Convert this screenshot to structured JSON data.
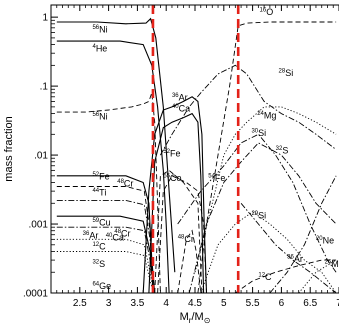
{
  "chart_data": {
    "type": "line",
    "xlabel": "M",
    "xlabel_sub": "r",
    "xlabel_unit": "/M",
    "xlabel_unit_sub": "⊙",
    "ylabel": "mass fraction",
    "xlim": [
      2,
      7
    ],
    "ylim": [
      0.0001,
      1.5
    ],
    "yscale": "log",
    "x_ticks": [
      {
        "v": 2,
        "label": ""
      },
      {
        "v": 2.5,
        "label": "2.5"
      },
      {
        "v": 3,
        "label": "3"
      },
      {
        "v": 3.5,
        "label": "3.5"
      },
      {
        "v": 4,
        "label": "4"
      },
      {
        "v": 4.5,
        "label": "4.5"
      },
      {
        "v": 5,
        "label": "5"
      },
      {
        "v": 5.5,
        "label": "5.5"
      },
      {
        "v": 6,
        "label": "6"
      },
      {
        "v": 6.5,
        "label": "6.5"
      },
      {
        "v": 7,
        "label": "7"
      }
    ],
    "y_ticks": [
      {
        "v": 1,
        "label": "1"
      },
      {
        "v": 0.1,
        "label": ".1"
      },
      {
        "v": 0.01,
        "label": ".01"
      },
      {
        "v": 0.001,
        "label": ".001"
      },
      {
        "v": 0.0001,
        "label": ".0001"
      }
    ],
    "grid": false,
    "legend": "none",
    "vlines": [
      {
        "x": 3.77,
        "color": "#e32219"
      },
      {
        "x": 5.25,
        "color": "#e32219"
      }
    ],
    "series": [
      {
        "id": "ni56",
        "style": "solid",
        "points": [
          [
            2.1,
            0.85
          ],
          [
            2.8,
            0.85
          ],
          [
            3.3,
            0.8
          ],
          [
            3.65,
            0.82
          ],
          [
            3.73,
            0.95
          ],
          [
            3.82,
            0.5
          ],
          [
            3.95,
            0.05
          ],
          [
            4.05,
            0.003
          ],
          [
            4.15,
            0.0002
          ]
        ]
      },
      {
        "id": "he4",
        "style": "solid",
        "points": [
          [
            2.1,
            0.45
          ],
          [
            3.2,
            0.45
          ],
          [
            3.6,
            0.4
          ],
          [
            3.75,
            0.2
          ],
          [
            3.85,
            0.05
          ],
          [
            3.95,
            0.006
          ],
          [
            4.0,
            0.001
          ],
          [
            4.05,
            0.0001
          ]
        ]
      },
      {
        "id": "ni56b",
        "style": "dashed",
        "points": [
          [
            2.1,
            0.042
          ],
          [
            2.6,
            0.042
          ],
          [
            3.0,
            0.045
          ],
          [
            3.4,
            0.05
          ],
          [
            3.6,
            0.055
          ],
          [
            3.7,
            0.06
          ],
          [
            3.75,
            0.08
          ],
          [
            3.8,
            0.03
          ],
          [
            3.85,
            0.002
          ],
          [
            3.9,
            0.0001
          ]
        ]
      },
      {
        "id": "ar36",
        "style": "solid",
        "points": [
          [
            3.6,
            0.0001
          ],
          [
            3.7,
            0.003
          ],
          [
            3.8,
            0.02
          ],
          [
            3.95,
            0.045
          ],
          [
            4.1,
            0.05
          ],
          [
            4.3,
            0.06
          ],
          [
            4.45,
            0.07
          ],
          [
            4.55,
            0.06
          ],
          [
            4.62,
            0.02
          ],
          [
            4.66,
            0.001
          ],
          [
            4.7,
            0.0001
          ]
        ]
      },
      {
        "id": "ca40",
        "style": "solid",
        "points": [
          [
            3.7,
            0.0001
          ],
          [
            3.8,
            0.008
          ],
          [
            3.95,
            0.025
          ],
          [
            4.1,
            0.03
          ],
          [
            4.3,
            0.035
          ],
          [
            4.45,
            0.04
          ],
          [
            4.55,
            0.03
          ],
          [
            4.6,
            0.005
          ],
          [
            4.65,
            0.0001
          ]
        ]
      },
      {
        "id": "fe52",
        "style": "solid",
        "points": [
          [
            2.1,
            0.005
          ],
          [
            3.3,
            0.005
          ],
          [
            3.6,
            0.004
          ],
          [
            3.7,
            0.002
          ],
          [
            3.75,
            0.0003
          ],
          [
            3.8,
            0.0001
          ]
        ]
      },
      {
        "id": "fe54",
        "style": "dashed",
        "points": [
          [
            3.85,
            0.0001
          ],
          [
            3.95,
            0.003
          ],
          [
            4.1,
            0.005
          ],
          [
            4.35,
            0.004
          ],
          [
            4.55,
            0.003
          ],
          [
            4.65,
            0.001
          ],
          [
            4.7,
            0.0001
          ]
        ]
      },
      {
        "id": "co55",
        "style": "dashed",
        "points": [
          [
            3.8,
            0.0001
          ],
          [
            3.9,
            0.005
          ],
          [
            4.05,
            0.006
          ],
          [
            4.3,
            0.004
          ],
          [
            4.55,
            0.002
          ],
          [
            4.62,
            0.0001
          ]
        ]
      },
      {
        "id": "si28",
        "style": "dashdot",
        "points": [
          [
            3.9,
            0.01
          ],
          [
            4.1,
            0.02
          ],
          [
            4.4,
            0.05
          ],
          [
            4.6,
            0.08
          ],
          [
            4.9,
            0.15
          ],
          [
            5.2,
            0.2
          ],
          [
            5.4,
            0.15
          ],
          [
            5.7,
            0.06
          ],
          [
            6.0,
            0.04
          ],
          [
            6.3,
            0.03
          ],
          [
            6.6,
            0.02
          ],
          [
            6.95,
            0.012
          ]
        ]
      },
      {
        "id": "o16",
        "style": "dashed",
        "points": [
          [
            4.55,
            0.0001
          ],
          [
            4.7,
            0.001
          ],
          [
            4.9,
            0.01
          ],
          [
            5.1,
            0.1
          ],
          [
            5.25,
            0.75
          ],
          [
            5.4,
            0.82
          ],
          [
            5.8,
            0.85
          ],
          [
            6.3,
            0.85
          ],
          [
            6.95,
            0.85
          ]
        ]
      },
      {
        "id": "mg24",
        "style": "dotted",
        "points": [
          [
            4.5,
            0.0002
          ],
          [
            4.8,
            0.002
          ],
          [
            5.0,
            0.01
          ],
          [
            5.2,
            0.02
          ],
          [
            5.4,
            0.03
          ],
          [
            5.7,
            0.05
          ],
          [
            6.0,
            0.05
          ],
          [
            6.3,
            0.04
          ],
          [
            6.6,
            0.03
          ],
          [
            6.95,
            0.02
          ]
        ]
      },
      {
        "id": "si30",
        "style": "dashdot",
        "points": [
          [
            4.4,
            0.0001
          ],
          [
            4.7,
            0.001
          ],
          [
            5.0,
            0.004
          ],
          [
            5.3,
            0.008
          ],
          [
            5.6,
            0.015
          ],
          [
            6.0,
            0.01
          ],
          [
            6.3,
            0.005
          ],
          [
            6.6,
            0.002
          ],
          [
            6.95,
            0.001
          ]
        ]
      },
      {
        "id": "s32",
        "style": "dashdot",
        "points": [
          [
            4.2,
            0.001
          ],
          [
            4.6,
            0.003
          ],
          [
            5.0,
            0.007
          ],
          [
            5.3,
            0.015
          ],
          [
            5.6,
            0.02
          ],
          [
            5.9,
            0.01
          ],
          [
            6.2,
            0.004
          ],
          [
            6.5,
            0.001
          ],
          [
            6.8,
            0.0003
          ],
          [
            6.95,
            0.0002
          ]
        ]
      },
      {
        "id": "si29",
        "style": "dotted",
        "points": [
          [
            4.6,
            0.0001
          ],
          [
            4.9,
            0.0005
          ],
          [
            5.2,
            0.001
          ],
          [
            5.5,
            0.0015
          ],
          [
            5.8,
            0.001
          ],
          [
            6.1,
            0.0006
          ],
          [
            6.4,
            0.0003
          ],
          [
            6.7,
            0.0002
          ],
          [
            6.95,
            0.0001
          ]
        ]
      },
      {
        "id": "ne20",
        "style": "dashdot",
        "points": [
          [
            5.8,
            0.0001
          ],
          [
            6.1,
            0.0002
          ],
          [
            6.4,
            0.0005
          ],
          [
            6.7,
            0.002
          ],
          [
            6.95,
            0.005
          ]
        ]
      },
      {
        "id": "c12",
        "style": "dashed",
        "points": [
          [
            5.2,
            0.0001
          ],
          [
            5.5,
            0.00015
          ],
          [
            5.9,
            0.0002
          ],
          [
            6.3,
            0.00025
          ],
          [
            6.7,
            0.0003
          ],
          [
            6.95,
            0.0003
          ]
        ]
      },
      {
        "id": "ar36b",
        "style": "dashdot",
        "points": [
          [
            5.3,
            0.002
          ],
          [
            5.6,
            0.001
          ],
          [
            5.9,
            0.0005
          ],
          [
            6.2,
            0.0003
          ],
          [
            6.5,
            0.0002
          ],
          [
            6.95,
            0.0001
          ]
        ]
      },
      {
        "id": "mg26",
        "style": "dotted",
        "points": [
          [
            6.3,
            0.0001
          ],
          [
            6.6,
            0.0002
          ],
          [
            6.95,
            0.0003
          ]
        ]
      },
      {
        "id": "cu59",
        "style": "solid",
        "points": [
          [
            2.1,
            0.0013
          ],
          [
            3.2,
            0.0013
          ],
          [
            3.6,
            0.0011
          ],
          [
            3.72,
            0.0004
          ],
          [
            3.78,
            0.0001
          ]
        ]
      },
      {
        "id": "cr48",
        "style": "dashed",
        "points": [
          [
            2.1,
            0.0035
          ],
          [
            3.3,
            0.0035
          ],
          [
            3.62,
            0.003
          ],
          [
            3.72,
            0.0008
          ],
          [
            3.78,
            0.0001
          ]
        ]
      },
      {
        "id": "ti44",
        "style": "dashdot",
        "points": [
          [
            2.1,
            0.0022
          ],
          [
            3.3,
            0.0022
          ],
          [
            3.62,
            0.0019
          ],
          [
            3.72,
            0.0006
          ],
          [
            3.78,
            0.0001
          ]
        ]
      },
      {
        "id": "ca40b",
        "style": "dashdot",
        "points": [
          [
            2.1,
            0.0009
          ],
          [
            3.3,
            0.0009
          ],
          [
            3.62,
            0.0008
          ],
          [
            3.72,
            0.0003
          ],
          [
            3.78,
            0.0001
          ]
        ]
      },
      {
        "id": "ar36c",
        "style": "dotted",
        "points": [
          [
            2.1,
            0.0006
          ],
          [
            3.3,
            0.0006
          ],
          [
            3.62,
            0.0005
          ],
          [
            3.72,
            0.0002
          ],
          [
            3.78,
            0.0001
          ]
        ]
      },
      {
        "id": "s32b",
        "style": "dotted",
        "points": [
          [
            2.1,
            0.0004
          ],
          [
            3.3,
            0.0004
          ],
          [
            3.62,
            0.00035
          ],
          [
            3.72,
            0.00015
          ],
          [
            3.78,
            0.0001
          ]
        ]
      },
      {
        "id": "cr48b",
        "style": "dashed",
        "points": [
          [
            4.2,
            0.0001
          ],
          [
            4.35,
            0.0006
          ],
          [
            4.45,
            0.0008
          ],
          [
            4.52,
            0.0004
          ],
          [
            4.6,
            0.0001
          ]
        ]
      }
    ],
    "annotations": [
      {
        "base": "Ni",
        "sup": "56",
        "x": 2.72,
        "y": 0.6
      },
      {
        "base": "He",
        "sup": "4",
        "x": 2.72,
        "y": 0.32
      },
      {
        "base": "Ni",
        "sup": "56",
        "x": 2.72,
        "y": 0.033
      },
      {
        "base": "Ar",
        "sup": "36",
        "x": 4.1,
        "y": 0.062
      },
      {
        "base": "Ca",
        "sup": "40",
        "x": 4.1,
        "y": 0.043
      },
      {
        "base": "Fe",
        "sup": "52",
        "x": 3.95,
        "y": 0.0095
      },
      {
        "base": "Co",
        "sup": "55",
        "x": 3.95,
        "y": 0.0042
      },
      {
        "base": "Fe",
        "sup": "54",
        "x": 4.73,
        "y": 0.0042
      },
      {
        "base": "O",
        "sup": "16",
        "x": 5.62,
        "y": 1.08
      },
      {
        "base": "Si",
        "sup": "28",
        "x": 5.95,
        "y": 0.14
      },
      {
        "base": "Mg",
        "sup": "24",
        "x": 5.58,
        "y": 0.034
      },
      {
        "base": "Si",
        "sup": "30",
        "x": 5.48,
        "y": 0.019
      },
      {
        "base": "S",
        "sup": "32",
        "x": 5.9,
        "y": 0.0105
      },
      {
        "base": "Si",
        "sup": "29",
        "x": 5.48,
        "y": 0.0012
      },
      {
        "base": "Fe",
        "sup": "52",
        "x": 2.72,
        "y": 0.0044
      },
      {
        "base": "Cr",
        "sup": "48",
        "x": 3.15,
        "y": 0.0035
      },
      {
        "base": "Ti",
        "sup": "44",
        "x": 2.72,
        "y": 0.0026
      },
      {
        "base": "Cu",
        "sup": "59",
        "x": 2.72,
        "y": 0.00095
      },
      {
        "base": "Cr",
        "sup": "48",
        "x": 3.1,
        "y": 0.00066
      },
      {
        "base": "Ar",
        "sup": "36",
        "x": 2.55,
        "y": 0.00062
      },
      {
        "base": "Ca",
        "sup": "40",
        "x": 2.95,
        "y": 0.00058
      },
      {
        "base": "C",
        "sup": "12",
        "x": 2.72,
        "y": 0.00043
      },
      {
        "base": "S",
        "sup": "32",
        "x": 2.72,
        "y": 0.00024
      },
      {
        "base": "Ge",
        "sup": "64",
        "x": 2.72,
        "y": 0.000115
      },
      {
        "base": "Cr",
        "sup": "48",
        "x": 4.2,
        "y": 0.00055
      },
      {
        "base": "Ne",
        "sup": "20",
        "x": 6.6,
        "y": 0.00052
      },
      {
        "base": "Ar",
        "sup": "36",
        "x": 6.1,
        "y": 0.00028
      },
      {
        "base": "Mg",
        "sup": "26",
        "x": 6.75,
        "y": 0.00024
      },
      {
        "base": "C",
        "sup": "12",
        "x": 5.6,
        "y": 0.000155
      }
    ]
  }
}
